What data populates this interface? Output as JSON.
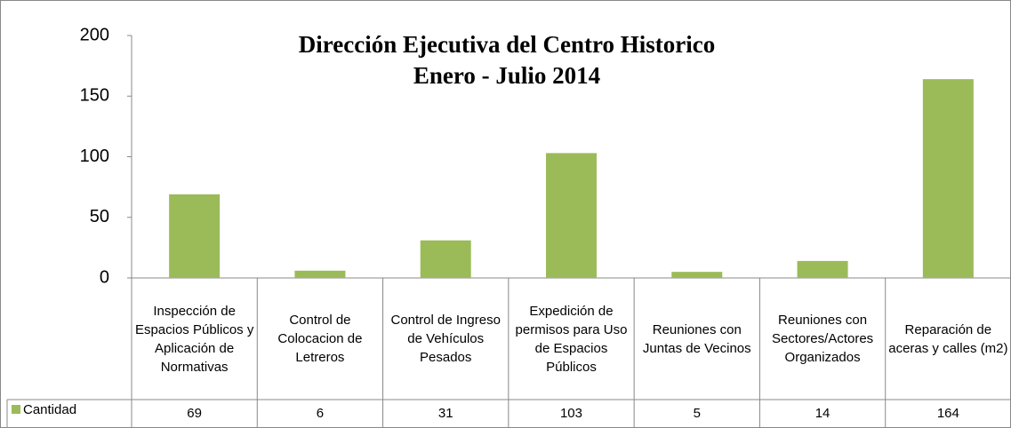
{
  "chart_data": {
    "type": "bar",
    "title": "Dirección Ejecutiva del Centro Historico",
    "subtitle": "Enero - Julio 2014",
    "categories": [
      "Inspección de Espacios Públicos y Aplicación de Normativas",
      "Control de Colocacion de Letreros",
      "Control de Ingreso de Vehículos Pesados",
      "Expedición de permisos para Uso de Espacios Públicos",
      "Reuniones con Juntas de Vecinos",
      "Reuniones con Sectores/Actores Organizados",
      "Reparación de aceras y calles (m2)"
    ],
    "series": [
      {
        "name": "Cantidad",
        "color": "#9bbb59",
        "values": [
          69,
          6,
          31,
          103,
          5,
          14,
          164
        ]
      }
    ],
    "ylim": [
      0,
      200
    ],
    "yticks": [
      0,
      50,
      100,
      150,
      200
    ],
    "grid": false
  }
}
